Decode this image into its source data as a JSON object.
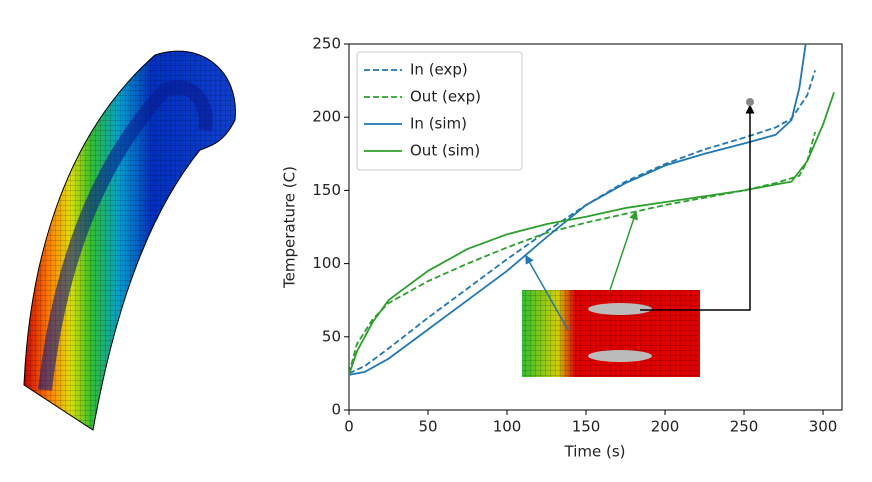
{
  "chart_data": {
    "type": "line",
    "x_label": "Time (s)",
    "y_label": "Temperature (C)",
    "xlim": [
      0,
      312
    ],
    "ylim": [
      0,
      250
    ],
    "xticks": [
      0,
      50,
      100,
      150,
      200,
      250,
      300
    ],
    "yticks": [
      0,
      50,
      100,
      150,
      200,
      250
    ],
    "legend": "upper left",
    "series": [
      {
        "name": "In (exp)",
        "color": "#1f77b4",
        "dash": true,
        "x": [
          0,
          10,
          25,
          50,
          75,
          100,
          125,
          150,
          175,
          200,
          225,
          250,
          270,
          280,
          290,
          295
        ],
        "values": [
          25,
          30,
          42,
          63,
          83,
          103,
          122,
          140,
          156,
          168,
          178,
          186,
          193,
          199,
          215,
          232
        ]
      },
      {
        "name": "Out (exp)",
        "color": "#2ca02c",
        "dash": true,
        "x": [
          0,
          5,
          15,
          25,
          50,
          75,
          100,
          125,
          150,
          175,
          200,
          225,
          250,
          270,
          285,
          290,
          295
        ],
        "values": [
          25,
          45,
          62,
          73,
          88,
          100,
          111,
          121,
          128,
          134,
          140,
          145,
          150,
          155,
          160,
          170,
          190
        ]
      },
      {
        "name": "In (sim)",
        "color": "#1f77b4",
        "dash": false,
        "x": [
          0,
          10,
          25,
          50,
          75,
          100,
          125,
          150,
          175,
          200,
          225,
          250,
          270,
          280,
          285,
          289
        ],
        "values": [
          24,
          26,
          35,
          55,
          75,
          95,
          118,
          140,
          155,
          167,
          175,
          182,
          188,
          198,
          220,
          250
        ]
      },
      {
        "name": "Out (sim)",
        "color": "#2ca02c",
        "dash": false,
        "x": [
          0,
          5,
          15,
          25,
          50,
          75,
          100,
          125,
          150,
          175,
          200,
          225,
          250,
          270,
          280,
          290,
          300,
          307
        ],
        "values": [
          24,
          40,
          60,
          75,
          95,
          110,
          120,
          127,
          132,
          138,
          142,
          146,
          150,
          154,
          156,
          170,
          195,
          217
        ]
      }
    ]
  }
}
